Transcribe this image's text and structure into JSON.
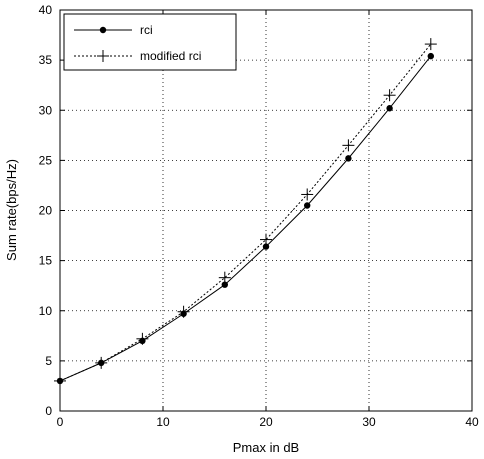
{
  "chart_data": {
    "type": "line",
    "xlabel": "Pmax in dB",
    "ylabel": "Sum rate(bps/Hz)",
    "xlim": [
      0,
      40
    ],
    "ylim": [
      0,
      40
    ],
    "xticks": [
      "0",
      "10",
      "20",
      "30",
      "40"
    ],
    "yticks": [
      "0",
      "5",
      "10",
      "15",
      "20",
      "25",
      "30",
      "35",
      "40"
    ],
    "grid": true,
    "legend_position": "top-left",
    "x": [
      0,
      4,
      8,
      12,
      16,
      20,
      24,
      28,
      32,
      36
    ],
    "series": [
      {
        "name": "rci",
        "marker": "dot",
        "line": "solid",
        "values": [
          3.0,
          4.8,
          7.0,
          9.7,
          12.6,
          16.4,
          20.5,
          25.2,
          30.2,
          35.4
        ]
      },
      {
        "name": "modified rci",
        "marker": "plus",
        "line": "dashed",
        "values": [
          3.0,
          4.8,
          7.2,
          9.9,
          13.3,
          17.1,
          21.6,
          26.5,
          31.5,
          36.6
        ]
      }
    ]
  }
}
